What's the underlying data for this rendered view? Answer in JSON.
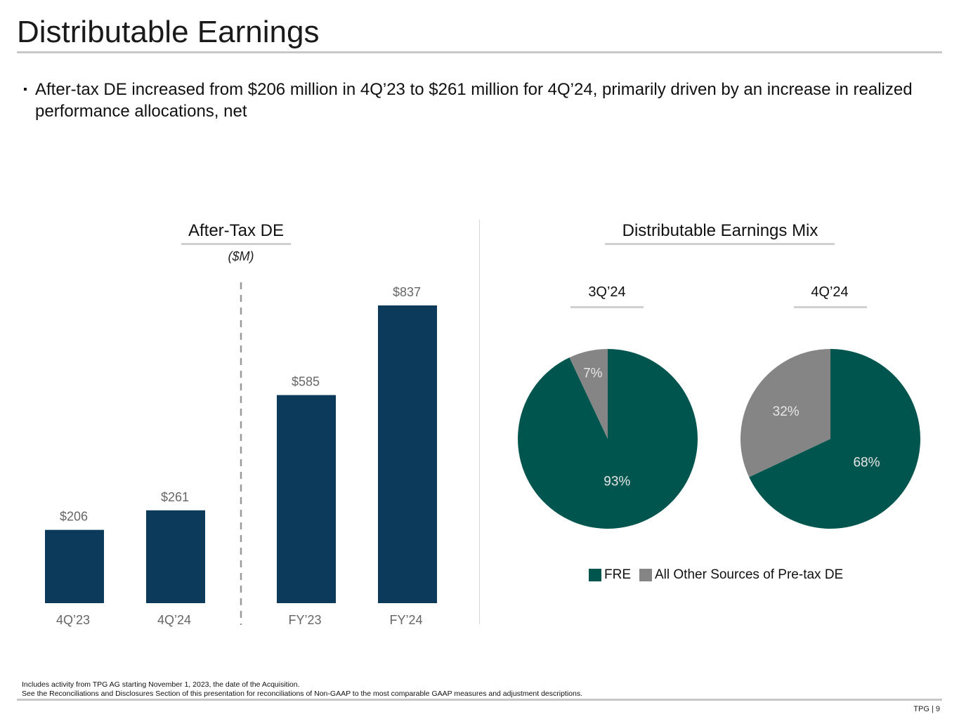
{
  "page": {
    "title": "Distributable Earnings",
    "bullet": "After-tax DE increased from $206 million in 4Q’23 to $261 million for 4Q’24, primarily driven by an increase in realized performance allocations, net",
    "bullet_marker": "▪",
    "footnote_1": "Includes activity from TPG AG starting November 1, 2023, the date of the Acquisition.",
    "footnote_2": "See the Reconciliations and Disclosures Section of this presentation for reconciliations of Non-GAAP to the most comparable GAAP measures and adjustment descriptions.",
    "page_number": "TPG | 9"
  },
  "colors": {
    "bar": "#0b3a5b",
    "fre": "#00564f",
    "other": "#858585",
    "label_gray": "#666666",
    "divider": "#9a9a9a"
  },
  "chart_data": [
    {
      "type": "bar",
      "title": "After-Tax DE",
      "units": "($M)",
      "categories": [
        "4Q’23",
        "4Q’24",
        "FY’23",
        "FY’24"
      ],
      "values": [
        206,
        261,
        585,
        837
      ],
      "labels": [
        "$206",
        "$261",
        "$585",
        "$837"
      ],
      "groups": [
        [
          "4Q’23",
          "4Q’24"
        ],
        [
          "FY’23",
          "FY’24"
        ]
      ],
      "group_separator": "dashed"
    },
    {
      "type": "pie",
      "title": "Distributable Earnings Mix",
      "legend": [
        "FRE",
        "All Other Sources of Pre-tax DE"
      ],
      "legend_position": "bottom",
      "pies": [
        {
          "title": "3Q’24",
          "slices": [
            {
              "name": "FRE",
              "value": 93,
              "label": "93%"
            },
            {
              "name": "All Other Sources of Pre-tax DE",
              "value": 7,
              "label": "7%"
            }
          ]
        },
        {
          "title": "4Q’24",
          "slices": [
            {
              "name": "FRE",
              "value": 68,
              "label": "68%"
            },
            {
              "name": "All Other Sources of Pre-tax DE",
              "value": 32,
              "label": "32%"
            }
          ]
        }
      ]
    }
  ]
}
